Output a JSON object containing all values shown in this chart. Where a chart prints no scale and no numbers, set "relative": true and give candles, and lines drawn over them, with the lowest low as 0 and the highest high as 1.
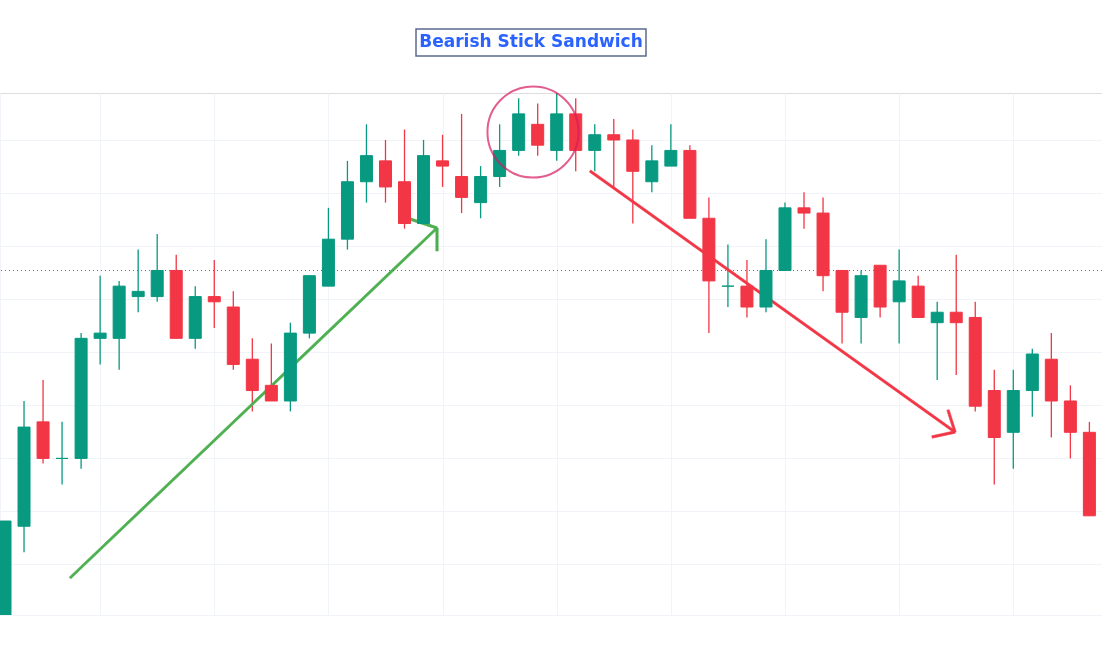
{
  "chart_data": {
    "type": "candlestick",
    "title": "Bearish Stick Sandwich",
    "relative": true,
    "grid": true,
    "categories": [
      null,
      null,
      null,
      null,
      null,
      null,
      null,
      null,
      null,
      null,
      null,
      null,
      null,
      null,
      null,
      null,
      null,
      null,
      null,
      null,
      null,
      null,
      null,
      null,
      null,
      null,
      null,
      null,
      null,
      null,
      null,
      null,
      null,
      null,
      null,
      null,
      null,
      null,
      null,
      null,
      null,
      null,
      null,
      null,
      null,
      null,
      null,
      null,
      null,
      null,
      null,
      null,
      null,
      null,
      null,
      null,
      null,
      null
    ],
    "ohlc": [
      [
        0,
        0.18,
        0,
        0.18
      ],
      [
        0.17,
        0.41,
        0.12,
        0.36
      ],
      [
        0.37,
        0.45,
        0.29,
        0.3
      ],
      [
        0.3,
        0.37,
        0.25,
        0.3
      ],
      [
        0.3,
        0.54,
        0.28,
        0.53
      ],
      [
        0.53,
        0.65,
        0.48,
        0.54
      ],
      [
        0.53,
        0.64,
        0.47,
        0.63
      ],
      [
        0.61,
        0.7,
        0.58,
        0.62
      ],
      [
        0.61,
        0.73,
        0.6,
        0.66
      ],
      [
        0.66,
        0.69,
        0.53,
        0.53
      ],
      [
        0.53,
        0.63,
        0.51,
        0.61
      ],
      [
        0.61,
        0.68,
        0.55,
        0.6
      ],
      [
        0.59,
        0.62,
        0.47,
        0.48
      ],
      [
        0.49,
        0.53,
        0.39,
        0.43
      ],
      [
        0.44,
        0.52,
        0.41,
        0.41
      ],
      [
        0.41,
        0.56,
        0.39,
        0.54
      ],
      [
        0.54,
        0.65,
        0.53,
        0.65
      ],
      [
        0.63,
        0.78,
        0.63,
        0.72
      ],
      [
        0.72,
        0.87,
        0.7,
        0.83
      ],
      [
        0.83,
        0.94,
        0.79,
        0.88
      ],
      [
        0.87,
        0.91,
        0.79,
        0.82
      ],
      [
        0.83,
        0.93,
        0.74,
        0.75
      ],
      [
        0.75,
        0.91,
        0.75,
        0.88
      ],
      [
        0.87,
        0.92,
        0.82,
        0.86
      ],
      [
        0.84,
        0.96,
        0.77,
        0.8
      ],
      [
        0.79,
        0.86,
        0.76,
        0.84
      ],
      [
        0.84,
        0.94,
        0.82,
        0.89
      ],
      [
        0.89,
        0.99,
        0.88,
        0.96
      ],
      [
        0.94,
        0.98,
        0.88,
        0.9
      ],
      [
        0.89,
        1.0,
        0.87,
        0.96
      ],
      [
        0.96,
        0.99,
        0.85,
        0.89
      ],
      [
        0.89,
        0.94,
        0.85,
        0.92
      ],
      [
        0.92,
        0.95,
        0.82,
        0.91
      ],
      [
        0.91,
        0.93,
        0.75,
        0.85
      ],
      [
        0.83,
        0.9,
        0.81,
        0.87
      ],
      [
        0.86,
        0.94,
        0.86,
        0.89
      ],
      [
        0.89,
        0.9,
        0.76,
        0.76
      ],
      [
        0.76,
        0.8,
        0.54,
        0.64
      ],
      [
        0.63,
        0.71,
        0.59,
        0.63
      ],
      [
        0.63,
        0.68,
        0.57,
        0.59
      ],
      [
        0.59,
        0.72,
        0.58,
        0.66
      ],
      [
        0.66,
        0.79,
        0.66,
        0.78
      ],
      [
        0.78,
        0.81,
        0.74,
        0.77
      ],
      [
        0.77,
        0.8,
        0.62,
        0.65
      ],
      [
        0.66,
        0.66,
        0.52,
        0.58
      ],
      [
        0.57,
        0.66,
        0.52,
        0.65
      ],
      [
        0.67,
        0.67,
        0.57,
        0.59
      ],
      [
        0.6,
        0.7,
        0.52,
        0.64
      ],
      [
        0.63,
        0.65,
        0.57,
        0.57
      ],
      [
        0.56,
        0.6,
        0.45,
        0.58
      ],
      [
        0.58,
        0.69,
        0.46,
        0.56
      ],
      [
        0.57,
        0.6,
        0.39,
        0.4
      ],
      [
        0.43,
        0.47,
        0.25,
        0.34
      ],
      [
        0.35,
        0.47,
        0.28,
        0.43
      ],
      [
        0.43,
        0.51,
        0.38,
        0.5
      ],
      [
        0.49,
        0.54,
        0.34,
        0.41
      ],
      [
        0.41,
        0.44,
        0.3,
        0.35
      ],
      [
        0.35,
        0.37,
        0.19,
        0.19
      ]
    ],
    "colors": [
      "#089981",
      "#089981",
      "#f23645",
      "#089981",
      "#089981",
      "#089981",
      "#089981",
      "#089981",
      "#089981",
      "#f23645",
      "#089981",
      "#f23645",
      "#f23645",
      "#f23645",
      "#f23645",
      "#089981",
      "#089981",
      "#089981",
      "#089981",
      "#089981",
      "#f23645",
      "#f23645",
      "#089981",
      "#f23645",
      "#f23645",
      "#089981",
      "#089981",
      "#089981",
      "#f23645",
      "#089981",
      "#f23645",
      "#089981",
      "#f23645",
      "#f23645",
      "#089981",
      "#089981",
      "#f23645",
      "#f23645",
      "#089981",
      "#f23645",
      "#089981",
      "#089981",
      "#f23645",
      "#f23645",
      "#f23645",
      "#089981",
      "#f23645",
      "#089981",
      "#f23645",
      "#089981",
      "#f23645",
      "#f23645",
      "#f23645",
      "#089981",
      "#089981",
      "#f23645",
      "#f23645",
      "#f23645"
    ],
    "ref_lines": [
      {
        "axis": "y",
        "value": 0.66,
        "color": "#089981",
        "line_style": "dotted"
      }
    ]
  }
}
